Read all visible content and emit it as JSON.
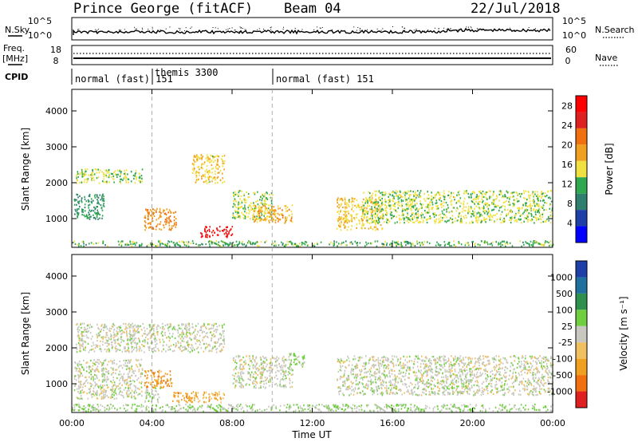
{
  "header": {
    "title": "Prince George (fitACF)",
    "beam": "Beam 04",
    "date": "22/Jul/2018"
  },
  "left_labels": {
    "nsky": "N.Sky",
    "freq": "Freq.",
    "freq_unit": "[MHz]",
    "cpid": "CPID"
  },
  "right_labels": {
    "nsearch": "N.Search",
    "nave": "Nave"
  },
  "noise_panel": {
    "left_ticks": [
      "10^5",
      "10^0"
    ],
    "right_ticks": [
      "10^5",
      "10^0"
    ]
  },
  "freq_panel": {
    "left_ticks": [
      "18",
      "8"
    ],
    "right_ticks": [
      "60",
      "0"
    ]
  },
  "cpid_segments": [
    {
      "label": "normal (fast) 151",
      "start_hour": 0.0
    },
    {
      "label": "themis 3300",
      "start_hour": 4.0
    },
    {
      "label": "normal (fast) 151",
      "start_hour": 10.0
    }
  ],
  "colors": {
    "power_scale": [
      "#0000ff",
      "#1f3fa8",
      "#2f7f6f",
      "#2fa84f",
      "#f0e040",
      "#f0a020",
      "#f07010",
      "#e02020",
      "#ff0000"
    ],
    "velocity_scale": [
      "#1f3fa8",
      "#1f6f9f",
      "#2f8f4f",
      "#6fcf3f",
      "#c8c8c0",
      "#f0c060",
      "#f0a020",
      "#f07010",
      "#e02020"
    ]
  },
  "chart_data": [
    {
      "type": "heatmap",
      "title": "",
      "xlabel": "Time UT",
      "ylabel": "Slant Range [km]",
      "xlim": [
        0,
        24
      ],
      "ylim": [
        200,
        4600
      ],
      "x_ticks": [
        "00:00",
        "04:00",
        "08:00",
        "12:00",
        "16:00",
        "20:00",
        "00:00"
      ],
      "y_ticks": [
        "1000",
        "2000",
        "3000",
        "4000"
      ],
      "colorbar": {
        "label": "Power [dB]",
        "ticks": [
          "4",
          "8",
          "12",
          "16",
          "20",
          "24",
          "28"
        ],
        "range": [
          0,
          30
        ]
      },
      "echo_regions": [
        {
          "t0": 0.2,
          "t1": 3.5,
          "r0": 2000,
          "r1": 2400,
          "value": 14
        },
        {
          "t0": 0.1,
          "t1": 1.6,
          "r0": 1000,
          "r1": 1700,
          "value": 10
        },
        {
          "t0": 3.6,
          "t1": 5.2,
          "r0": 700,
          "r1": 1300,
          "value": 20
        },
        {
          "t0": 6.0,
          "t1": 7.6,
          "r0": 2000,
          "r1": 2800,
          "value": 16
        },
        {
          "t0": 6.4,
          "t1": 8.0,
          "r0": 500,
          "r1": 800,
          "value": 27
        },
        {
          "t0": 8.0,
          "t1": 10.0,
          "r0": 1000,
          "r1": 1800,
          "value": 14
        },
        {
          "t0": 9.0,
          "t1": 11.0,
          "r0": 900,
          "r1": 1400,
          "value": 18
        },
        {
          "t0": 13.2,
          "t1": 15.5,
          "r0": 700,
          "r1": 1600,
          "value": 16
        },
        {
          "t0": 14.5,
          "t1": 24.0,
          "r0": 900,
          "r1": 1800,
          "value": 14
        },
        {
          "t0": 0.0,
          "t1": 24.0,
          "r0": 250,
          "r1": 400,
          "value": 12
        }
      ]
    },
    {
      "type": "heatmap",
      "title": "",
      "xlabel": "Time UT",
      "ylabel": "Slant Range [km]",
      "xlim": [
        0,
        24
      ],
      "ylim": [
        200,
        4600
      ],
      "x_ticks": [
        "00:00",
        "04:00",
        "08:00",
        "12:00",
        "16:00",
        "20:00",
        "00:00"
      ],
      "y_ticks": [
        "1000",
        "2000",
        "3000",
        "4000"
      ],
      "colorbar": {
        "label": "Velocity [m s⁻¹]",
        "ticks": [
          "1000",
          "500",
          "100",
          "25",
          "-25",
          "-100",
          "-500",
          "-1000"
        ],
        "range": [
          -1000,
          1000
        ]
      },
      "echo_regions": [
        {
          "t0": 0.2,
          "t1": 7.6,
          "r0": 1900,
          "r1": 2700,
          "value": 0
        },
        {
          "t0": 0.1,
          "t1": 3.5,
          "r0": 600,
          "r1": 1700,
          "value": 0
        },
        {
          "t0": 3.6,
          "t1": 5.0,
          "r0": 900,
          "r1": 1400,
          "value": -500
        },
        {
          "t0": 3.6,
          "t1": 4.4,
          "r0": 500,
          "r1": 900,
          "value": 100
        },
        {
          "t0": 5.0,
          "t1": 7.6,
          "r0": 500,
          "r1": 800,
          "value": -400
        },
        {
          "t0": 8.0,
          "t1": 11.0,
          "r0": 900,
          "r1": 1800,
          "value": 0
        },
        {
          "t0": 10.8,
          "t1": 11.6,
          "r0": 1500,
          "r1": 1900,
          "value": 150
        },
        {
          "t0": 13.2,
          "t1": 24.0,
          "r0": 700,
          "r1": 1800,
          "value": 0
        },
        {
          "t0": 0.0,
          "t1": 24.0,
          "r0": 250,
          "r1": 450,
          "value": 120
        }
      ]
    }
  ]
}
